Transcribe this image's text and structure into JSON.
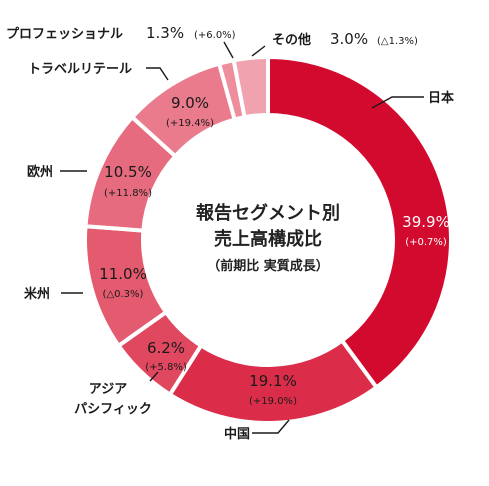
{
  "chart_data": {
    "type": "pie",
    "title_lines": [
      "報告セグメント別",
      "売上高構成比"
    ],
    "subtitle": "（前期比 実質成長）",
    "segments": [
      {
        "name": "日本",
        "value": 39.9,
        "value_label": "39.9%",
        "change": "(+0.7%)",
        "color": "#d20a2e"
      },
      {
        "name": "中国",
        "value": 19.1,
        "value_label": "19.1%",
        "change": "(+19.0%)",
        "color": "#db2d4a"
      },
      {
        "name_lines": [
          "アジア",
          "パシフィック"
        ],
        "value": 6.2,
        "value_label": "6.2%",
        "change": "(+5.8%)",
        "color": "#e04860"
      },
      {
        "name": "米州",
        "value": 11.0,
        "value_label": "11.0%",
        "change": "(△0.3%)",
        "color": "#e45a6f"
      },
      {
        "name": "欧州",
        "value": 10.5,
        "value_label": "10.5%",
        "change": "(+11.8%)",
        "color": "#e76b7f"
      },
      {
        "name": "トラベルリテール",
        "value": 9.0,
        "value_label": "9.0%",
        "change": "(+19.4%)",
        "color": "#ea7b8d"
      },
      {
        "name": "プロフェッショナル",
        "value": 1.3,
        "value_label": "1.3%",
        "change": "(+6.0%)",
        "color": "#ee8d9c"
      },
      {
        "name": "その他",
        "value": 3.0,
        "value_label": "3.0%",
        "change": "(△1.3%)",
        "color": "#f0a3af"
      }
    ]
  }
}
